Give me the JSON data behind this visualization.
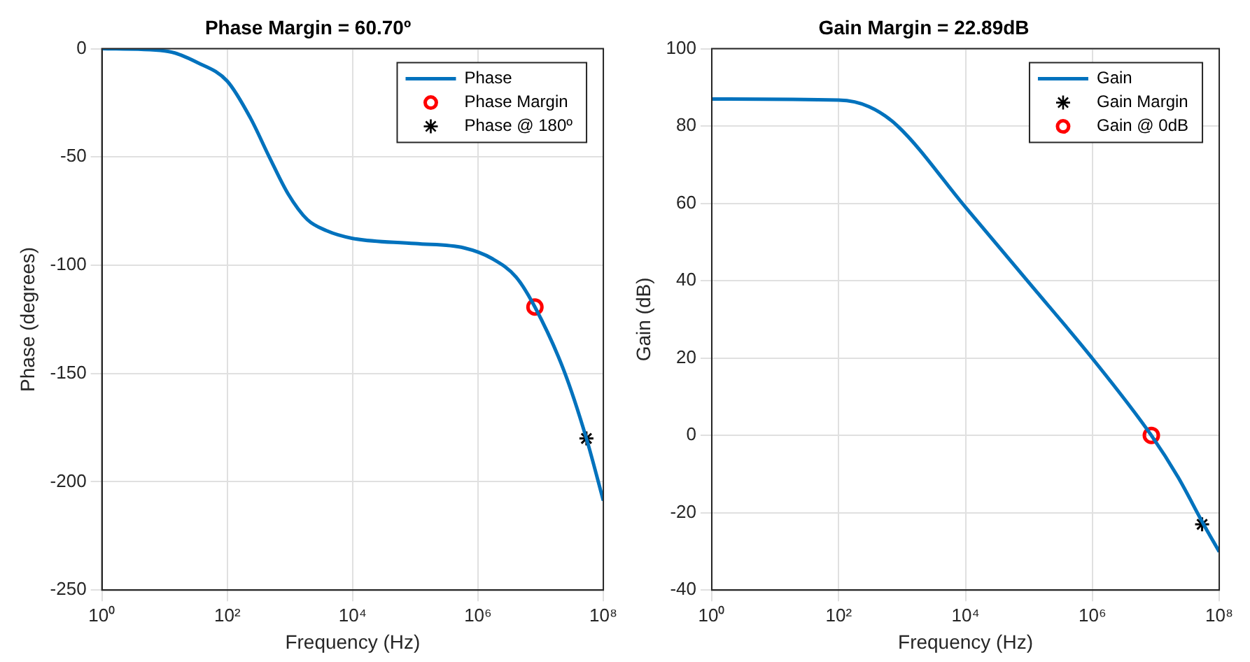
{
  "chart_data": [
    {
      "type": "line",
      "title": "Phase Margin = 60.70º",
      "xlabel": "Frequency (Hz)",
      "ylabel": "Phase (degrees)",
      "log": "x",
      "grid": true,
      "legend": "top right",
      "xlim": [
        1,
        100000000
      ],
      "ylim": [
        -250,
        0
      ],
      "xticks": [
        {
          "value": 1,
          "label": "10⁰"
        },
        {
          "value": 100,
          "label": "10²"
        },
        {
          "value": 10000,
          "label": "10⁴"
        },
        {
          "value": 1000000,
          "label": "10⁶"
        },
        {
          "value": 100000000,
          "label": "10⁸"
        }
      ],
      "yticks": [
        -250,
        -200,
        -150,
        -100,
        -50,
        0
      ],
      "series": [
        {
          "name": "Phase",
          "type": "line",
          "color": "#0072bd",
          "marker": "none",
          "x": [
            1,
            10,
            34,
            100,
            234,
            468,
            933,
            1905,
            3802,
            10000,
            100000,
            600000,
            1700000,
            4070000,
            8100000,
            23400000,
            53700000,
            100000000
          ],
          "values": [
            0,
            -1,
            -6.5,
            -15,
            -32,
            -50,
            -67,
            -79,
            -84,
            -87.6,
            -90,
            -92,
            -97,
            -105.5,
            -119.3,
            -148.5,
            -180,
            -208.7
          ]
        },
        {
          "name": "Phase Margin",
          "type": "scatter",
          "color": "#ff0000",
          "marker": "circle",
          "x": [
            8100000
          ],
          "values": [
            -119.3
          ]
        },
        {
          "name": "Phase @ 180º",
          "type": "scatter",
          "color": "#000000",
          "marker": "cross",
          "x": [
            53700000
          ],
          "values": [
            -180
          ]
        }
      ]
    },
    {
      "type": "line",
      "title": "Gain Margin = 22.89dB",
      "xlabel": "Frequency (Hz)",
      "ylabel": "Gain (dB)",
      "log": "x",
      "grid": true,
      "legend": "top right",
      "xlim": [
        1,
        100000000
      ],
      "ylim": [
        -40,
        100
      ],
      "xticks": [
        {
          "value": 1,
          "label": "10⁰"
        },
        {
          "value": 100,
          "label": "10²"
        },
        {
          "value": 10000,
          "label": "10⁴"
        },
        {
          "value": 1000000,
          "label": "10⁶"
        },
        {
          "value": 100000000,
          "label": "10⁸"
        }
      ],
      "yticks": [
        -40,
        -20,
        0,
        20,
        40,
        60,
        80,
        100
      ],
      "series": [
        {
          "name": "Gain",
          "type": "line",
          "color": "#0072bd",
          "marker": "none",
          "x": [
            1,
            100,
            302,
            851,
            10000,
            100000,
            1000000,
            8500000,
            22400000,
            56200000,
            100000000
          ],
          "values": [
            87,
            86.7,
            85,
            80,
            59,
            39.5,
            19.9,
            0,
            -10.8,
            -22.9,
            -30.1
          ]
        },
        {
          "name": "Gain Margin",
          "type": "scatter",
          "color": "#000000",
          "marker": "cross",
          "x": [
            53700000
          ],
          "values": [
            -23
          ]
        },
        {
          "name": "Gain @ 0dB",
          "type": "scatter",
          "color": "#ff0000",
          "marker": "circle",
          "x": [
            8500000
          ],
          "values": [
            0
          ]
        }
      ]
    }
  ]
}
